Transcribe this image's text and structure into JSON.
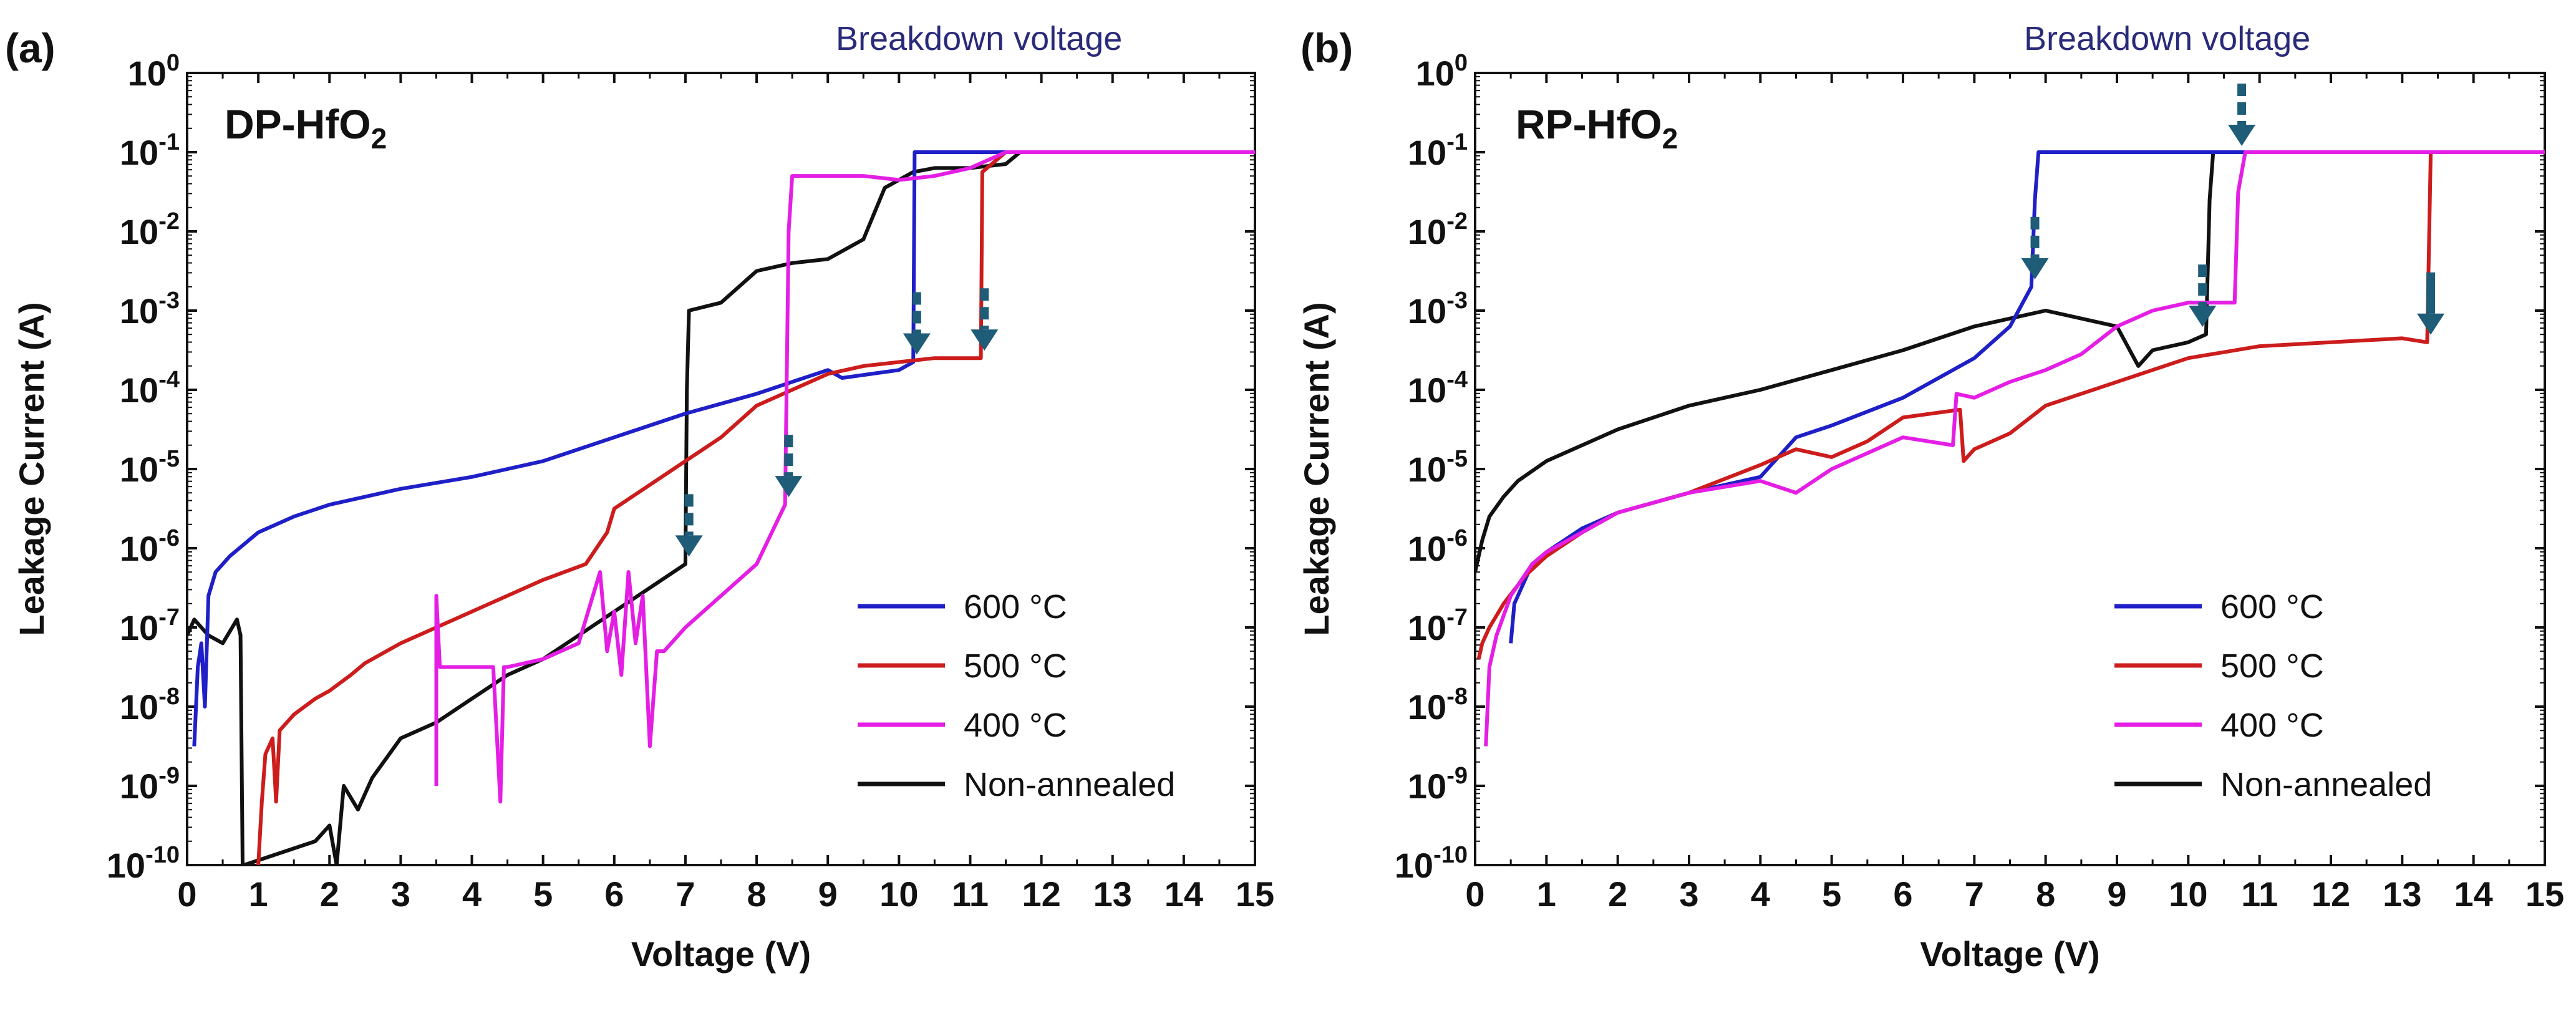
{
  "chart_data": [
    {
      "type": "line",
      "panel_label": "(a)",
      "title_main": "DP-HfO",
      "title_sub": "2",
      "annotation": "Breakdown voltage",
      "xlabel": "Voltage (V)",
      "ylabel": "Leakage Current (A)",
      "xlim": [
        0,
        15
      ],
      "ylim_log10": [
        -10,
        0
      ],
      "x_ticks": [
        "0",
        "1",
        "2",
        "3",
        "4",
        "5",
        "6",
        "7",
        "8",
        "9",
        "10",
        "11",
        "12",
        "13",
        "14",
        "15"
      ],
      "y_ticks": [
        {
          "base": "10",
          "exp": "0"
        },
        {
          "base": "10",
          "exp": "-1"
        },
        {
          "base": "10",
          "exp": "-2"
        },
        {
          "base": "10",
          "exp": "-3"
        },
        {
          "base": "10",
          "exp": "-4"
        },
        {
          "base": "10",
          "exp": "-5"
        },
        {
          "base": "10",
          "exp": "-6"
        },
        {
          "base": "10",
          "exp": "-7"
        },
        {
          "base": "10",
          "exp": "-8"
        },
        {
          "base": "10",
          "exp": "-9"
        },
        {
          "base": "10",
          "exp": "-10"
        }
      ],
      "breakdown_arrows": [
        {
          "x": 7.05,
          "style": "dashed",
          "series": "Non-annealed"
        },
        {
          "x": 8.45,
          "style": "dashed",
          "series": "400 °C"
        },
        {
          "x": 10.25,
          "style": "dashed",
          "series": "600 °C"
        },
        {
          "x": 11.2,
          "style": "dashed",
          "series": "500 °C"
        }
      ],
      "series": [
        {
          "name": "600 °C",
          "color": "#1f1fc8",
          "x": [
            0.1,
            0.15,
            0.2,
            0.25,
            0.3,
            0.4,
            0.6,
            1,
            1.5,
            2,
            3,
            4,
            4.5,
            5,
            6,
            7,
            8,
            8.5,
            9,
            9.2,
            10,
            10.2,
            10.22,
            10.3,
            11,
            12,
            15
          ],
          "log10y": [
            -8.5,
            -7.5,
            -7.2,
            -8,
            -6.6,
            -6.3,
            -6.1,
            -5.8,
            -5.6,
            -5.45,
            -5.25,
            -5.1,
            -5,
            -4.9,
            -4.6,
            -4.3,
            -4.05,
            -3.9,
            -3.75,
            -3.85,
            -3.75,
            -3.65,
            -1,
            -1,
            -1,
            -1,
            -1
          ]
        },
        {
          "name": "500 °C",
          "color": "#cc1c1c",
          "x": [
            1,
            1.05,
            1.1,
            1.2,
            1.25,
            1.3,
            1.5,
            1.8,
            2,
            2.3,
            2.5,
            3,
            4,
            5,
            5.6,
            5.9,
            6,
            6.5,
            7,
            7.5,
            8,
            8.5,
            9,
            9.5,
            10,
            10.5,
            11,
            11.15,
            11.17,
            11.5,
            15
          ],
          "log10y": [
            -10,
            -9.2,
            -8.6,
            -8.4,
            -9.2,
            -8.3,
            -8.1,
            -7.9,
            -7.8,
            -7.6,
            -7.45,
            -7.2,
            -6.8,
            -6.4,
            -6.2,
            -5.8,
            -5.5,
            -5.2,
            -4.9,
            -4.6,
            -4.2,
            -4,
            -3.8,
            -3.7,
            -3.65,
            -3.6,
            -3.6,
            -3.6,
            -1.25,
            -1,
            -1
          ]
        },
        {
          "name": "400 °C",
          "color": "#e41ee4",
          "x": [
            3.5,
            3.5,
            3.55,
            3.8,
            4,
            4.3,
            4.4,
            4.45,
            4.5,
            5,
            5.5,
            5.8,
            5.9,
            6,
            6.1,
            6.2,
            6.3,
            6.4,
            6.5,
            6.6,
            6.7,
            7,
            7.5,
            8,
            8.4,
            8.45,
            8.5,
            9,
            9.5,
            10,
            10.5,
            11,
            11.5,
            15
          ],
          "log10y": [
            -9,
            -6.6,
            -7.5,
            -7.5,
            -7.5,
            -7.5,
            -9.2,
            -7.5,
            -7.5,
            -7.4,
            -7.2,
            -6.3,
            -7.3,
            -6.8,
            -7.6,
            -6.3,
            -7.2,
            -6.6,
            -8.5,
            -7.3,
            -7.3,
            -7,
            -6.6,
            -6.2,
            -5.45,
            -2,
            -1.3,
            -1.3,
            -1.3,
            -1.35,
            -1.3,
            -1.2,
            -1,
            -1
          ]
        },
        {
          "name": "Non-annealed",
          "color": "#111111",
          "x": [
            0,
            0.1,
            0.3,
            0.5,
            0.7,
            0.75,
            0.78,
            0.8,
            1.8,
            2,
            2.1,
            2.2,
            2.4,
            2.6,
            3,
            3.5,
            4,
            4.5,
            5,
            5.5,
            6,
            6.5,
            7,
            7.02,
            7.05,
            7.5,
            8,
            8.5,
            9,
            9.5,
            9.8,
            10,
            10.2,
            10.5,
            11,
            11.5,
            11.7,
            15
          ],
          "log10y": [
            -7.1,
            -6.9,
            -7.1,
            -7.2,
            -6.9,
            -7.1,
            -10,
            -10,
            -9.7,
            -9.5,
            -10,
            -9,
            -9.3,
            -8.9,
            -8.4,
            -8.2,
            -7.9,
            -7.6,
            -7.4,
            -7.1,
            -6.8,
            -6.5,
            -6.2,
            -4,
            -3,
            -2.9,
            -2.5,
            -2.4,
            -2.35,
            -2.1,
            -1.45,
            -1.35,
            -1.25,
            -1.2,
            -1.2,
            -1.15,
            -1,
            -1
          ]
        }
      ],
      "legend": [
        "600 °C",
        "500 °C",
        "400 °C",
        "Non-annealed"
      ],
      "legend_position": "bottom-right"
    },
    {
      "type": "line",
      "panel_label": "(b)",
      "title_main": "RP-HfO",
      "title_sub": "2",
      "annotation": "Breakdown voltage",
      "xlabel": "Voltage (V)",
      "ylabel": "Leakage Current (A)",
      "xlim": [
        0,
        15
      ],
      "ylim_log10": [
        -10,
        0
      ],
      "x_ticks": [
        "0",
        "1",
        "2",
        "3",
        "4",
        "5",
        "6",
        "7",
        "8",
        "9",
        "10",
        "11",
        "12",
        "13",
        "14",
        "15"
      ],
      "y_ticks": [
        {
          "base": "10",
          "exp": "0"
        },
        {
          "base": "10",
          "exp": "-1"
        },
        {
          "base": "10",
          "exp": "-2"
        },
        {
          "base": "10",
          "exp": "-3"
        },
        {
          "base": "10",
          "exp": "-4"
        },
        {
          "base": "10",
          "exp": "-5"
        },
        {
          "base": "10",
          "exp": "-6"
        },
        {
          "base": "10",
          "exp": "-7"
        },
        {
          "base": "10",
          "exp": "-8"
        },
        {
          "base": "10",
          "exp": "-9"
        },
        {
          "base": "10",
          "exp": "-10"
        }
      ],
      "breakdown_arrows": [
        {
          "x": 7.85,
          "style": "dashed",
          "series": "600 °C"
        },
        {
          "x": 10.2,
          "style": "dashed",
          "series": "Non-annealed"
        },
        {
          "x": 10.75,
          "style": "dashed",
          "series": "400 °C"
        },
        {
          "x": 13.4,
          "style": "solid",
          "series": "500 °C"
        }
      ],
      "series": [
        {
          "name": "600 °C",
          "color": "#1f1fc8",
          "x": [
            0.5,
            0.55,
            0.6,
            0.7,
            0.8,
            1,
            1.5,
            2,
            3,
            4,
            4.5,
            5,
            6,
            7,
            7.5,
            7.8,
            7.85,
            7.9,
            8,
            9,
            10,
            12,
            15
          ],
          "log10y": [
            -7.2,
            -6.7,
            -6.6,
            -6.4,
            -6.2,
            -6.05,
            -5.75,
            -5.55,
            -5.3,
            -5.1,
            -4.6,
            -4.45,
            -4.1,
            -3.6,
            -3.2,
            -2.7,
            -1.6,
            -1,
            -1,
            -1,
            -1,
            -1,
            -1
          ]
        },
        {
          "name": "500 °C",
          "color": "#cc1c1c",
          "x": [
            0.05,
            0.1,
            0.2,
            0.4,
            0.7,
            1,
            1.5,
            2,
            3,
            4,
            4.5,
            5,
            5.5,
            6,
            6.8,
            6.85,
            7,
            7.5,
            8,
            9,
            10,
            11,
            12,
            13,
            13.35,
            13.4,
            13.45,
            15
          ],
          "log10y": [
            -7.4,
            -7.2,
            -7,
            -6.7,
            -6.35,
            -6.1,
            -5.8,
            -5.55,
            -5.3,
            -4.95,
            -4.75,
            -4.85,
            -4.65,
            -4.35,
            -4.25,
            -4.9,
            -4.75,
            -4.55,
            -4.2,
            -3.9,
            -3.6,
            -3.45,
            -3.4,
            -3.35,
            -3.4,
            -1,
            -1,
            -1
          ]
        },
        {
          "name": "400 °C",
          "color": "#e41ee4",
          "x": [
            0.15,
            0.2,
            0.3,
            0.5,
            0.8,
            1,
            1.5,
            2,
            3,
            4,
            4.5,
            5,
            5.5,
            6,
            6.7,
            6.75,
            7,
            7.5,
            8,
            8.5,
            9,
            9.5,
            10,
            10.5,
            10.65,
            10.7,
            10.8,
            15
          ],
          "log10y": [
            -8.5,
            -7.5,
            -7.1,
            -6.6,
            -6.2,
            -6.05,
            -5.8,
            -5.55,
            -5.3,
            -5.15,
            -5.3,
            -5,
            -4.8,
            -4.6,
            -4.7,
            -4.05,
            -4.1,
            -3.9,
            -3.75,
            -3.55,
            -3.2,
            -3.0,
            -2.9,
            -2.9,
            -2.9,
            -1.5,
            -1,
            -1
          ]
        },
        {
          "name": "Non-annealed",
          "color": "#111111",
          "x": [
            0,
            0.1,
            0.2,
            0.4,
            0.6,
            1,
            1.5,
            2,
            3,
            4,
            5,
            6,
            7,
            7.5,
            8,
            8.5,
            9,
            9.3,
            9.5,
            10,
            10.25,
            10.3,
            10.35,
            15
          ],
          "log10y": [
            -6.3,
            -5.9,
            -5.6,
            -5.35,
            -5.15,
            -4.9,
            -4.7,
            -4.5,
            -4.2,
            -4.0,
            -3.75,
            -3.5,
            -3.2,
            -3.1,
            -3.0,
            -3.1,
            -3.2,
            -3.7,
            -3.5,
            -3.4,
            -3.3,
            -1.6,
            -1,
            -1
          ]
        }
      ],
      "legend": [
        "600 °C",
        "500 °C",
        "400 °C",
        "Non-annealed"
      ],
      "legend_position": "bottom-right"
    }
  ]
}
